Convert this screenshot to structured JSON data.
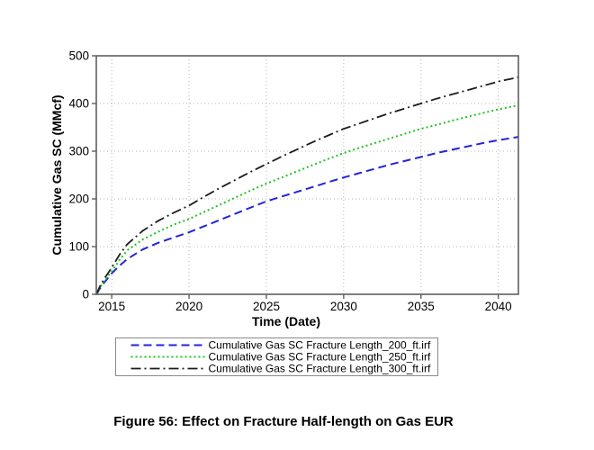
{
  "figure": {
    "caption": "Figure 56: Effect on Fracture Half-length on Gas EUR"
  },
  "chart_data": {
    "type": "line",
    "title": "",
    "xlabel": "Time (Date)",
    "ylabel": "Cumulative Gas SC (MMcf)",
    "xlim": [
      2014,
      2041.3
    ],
    "ylim": [
      0,
      500
    ],
    "x_ticks": [
      2015,
      2020,
      2025,
      2030,
      2035,
      2040
    ],
    "y_ticks": [
      0,
      100,
      200,
      300,
      400,
      500
    ],
    "grid": "dotted",
    "legend_position": "below-x-axis",
    "x": [
      2014,
      2014.25,
      2014.5,
      2014.75,
      2015,
      2015.5,
      2016,
      2017,
      2018,
      2019,
      2020,
      2021,
      2022,
      2023,
      2024,
      2025,
      2026,
      2027,
      2028,
      2029,
      2030,
      2031,
      2032,
      2033,
      2034,
      2035,
      2036,
      2037,
      2038,
      2039,
      2040,
      2041.3
    ],
    "series": [
      {
        "name": "Cumulative Gas SC Fracture Length_200_ft.irf",
        "color": "#2424d6",
        "dash": "9,5",
        "width": 2,
        "values": [
          0,
          13,
          24,
          34,
          44,
          60,
          74,
          94,
          108,
          119,
          130,
          143,
          156,
          169,
          182,
          195,
          205,
          215,
          225,
          235,
          245,
          254,
          263,
          272,
          280,
          288,
          296,
          303,
          310,
          317,
          323,
          330
        ]
      },
      {
        "name": "Cumulative Gas SC Fracture Length_250_ft.irf",
        "color": "#21c421",
        "dash": "2,3",
        "width": 2,
        "values": [
          0,
          15,
          27,
          38,
          48,
          72,
          92,
          115,
          131,
          146,
          158,
          173,
          188,
          203,
          218,
          232,
          245,
          258,
          271,
          284,
          296,
          307,
          317,
          327,
          337,
          347,
          355,
          364,
          372,
          380,
          388,
          396
        ]
      },
      {
        "name": "Cumulative Gas SC Fracture Length_300_ft.irf",
        "color": "#1c1c1c",
        "dash": "11,4,2,4",
        "width": 1.8,
        "values": [
          0,
          18,
          32,
          44,
          56,
          83,
          105,
          133,
          154,
          171,
          186,
          205,
          223,
          240,
          257,
          273,
          289,
          304,
          319,
          333,
          347,
          358,
          369,
          380,
          390,
          400,
          410,
          419,
          428,
          437,
          446,
          455
        ]
      }
    ],
    "colors": {
      "axis": "#5f5f5f",
      "grid": "#b4b4b4",
      "text": "#000000",
      "legend_border": "#8a8a8a",
      "background": "#ffffff"
    }
  }
}
